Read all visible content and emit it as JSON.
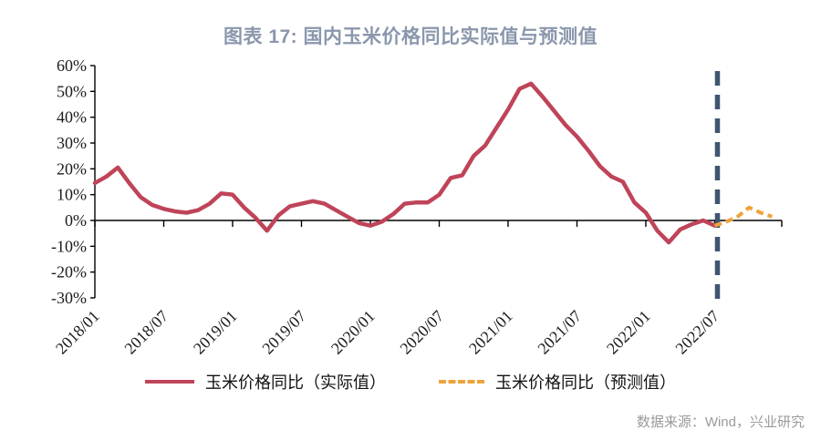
{
  "title": "图表 17: 国内玉米价格同比实际值与预测值",
  "source": "数据来源：Wind，兴业研究",
  "legend": {
    "actual_label": "玉米价格同比（实际值）",
    "forecast_label": "玉米价格同比（预测值）"
  },
  "colors": {
    "actual": "#BF4459",
    "forecast": "#EDA33C",
    "divider": "#3F566F",
    "axis": "#000000",
    "title_text": "#8A97AC",
    "source_text": "#9A9A9A"
  },
  "chart_data": {
    "type": "line",
    "title": "图表 17: 国内玉米价格同比实际值与预测值",
    "xlabel": "",
    "ylabel": "",
    "ylim": [
      -30,
      60
    ],
    "ytick_step": 10,
    "yticks": [
      "60%",
      "50%",
      "40%",
      "30%",
      "20%",
      "10%",
      "0%",
      "-10%",
      "-20%",
      "-30%"
    ],
    "xticks": [
      "2018/01",
      "2018/07",
      "2019/01",
      "2019/07",
      "2020/01",
      "2020/07",
      "2021/01",
      "2021/07",
      "2022/01",
      "2022/07"
    ],
    "grid": false,
    "legend_position": "bottom",
    "divider_x": "2022/07",
    "series": [
      {
        "name": "玉米价格同比（实际值）",
        "style": "solid",
        "color": "#BF4459",
        "width": 4.5,
        "start": "2018/01",
        "values": [
          14.5,
          17,
          20.5,
          14.5,
          9,
          6,
          4.5,
          3.5,
          3,
          4,
          6.5,
          10.5,
          10,
          5,
          1,
          -4,
          2,
          5.5,
          6.5,
          7.5,
          6.5,
          4,
          1.5,
          -1,
          -2,
          -0.5,
          2.5,
          6.5,
          7,
          7,
          10,
          16.5,
          17.5,
          25,
          29,
          36,
          43,
          51,
          53,
          48,
          42.5,
          37,
          32.5,
          27,
          21,
          17,
          15,
          7,
          3,
          -4,
          -8.5,
          -3.5,
          -1.5,
          0,
          -2
        ]
      },
      {
        "name": "玉米价格同比（预测值）",
        "style": "dashed",
        "color": "#EDA33C",
        "width": 4,
        "start": "2022/07",
        "values": [
          -2,
          -0.5,
          1.5,
          5,
          3,
          1.5
        ]
      }
    ]
  }
}
